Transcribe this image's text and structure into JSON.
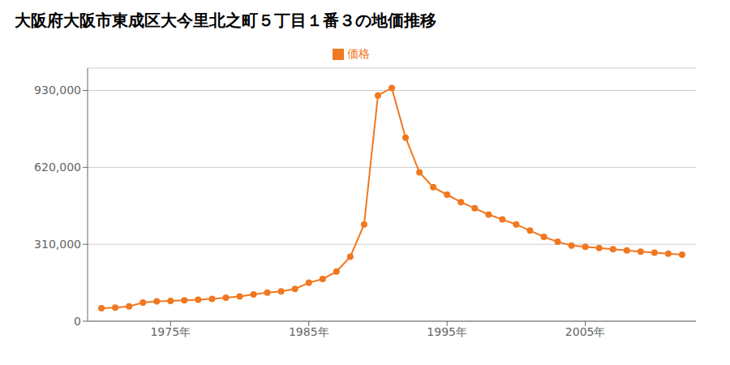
{
  "chart_data": {
    "type": "line",
    "title": "大阪府大阪市東成区大今里北之町５丁目１番３の地価推移",
    "x": [
      1970,
      1971,
      1972,
      1973,
      1974,
      1975,
      1976,
      1977,
      1978,
      1979,
      1980,
      1981,
      1982,
      1983,
      1984,
      1985,
      1986,
      1987,
      1988,
      1989,
      1990,
      1991,
      1992,
      1993,
      1994,
      1995,
      1996,
      1997,
      1998,
      1999,
      2000,
      2001,
      2002,
      2003,
      2004,
      2005,
      2006,
      2007,
      2008,
      2009,
      2010,
      2011,
      2012
    ],
    "series": [
      {
        "name": "価格",
        "color": "#f07820",
        "marker": "circle",
        "values": [
          52000,
          55000,
          60000,
          75000,
          80000,
          82000,
          84000,
          87000,
          90000,
          95000,
          100000,
          108000,
          115000,
          120000,
          130000,
          155000,
          170000,
          200000,
          260000,
          390000,
          910000,
          940000,
          740000,
          600000,
          540000,
          510000,
          480000,
          455000,
          430000,
          410000,
          390000,
          365000,
          340000,
          320000,
          305000,
          300000,
          295000,
          290000,
          285000,
          280000,
          276000,
          272000,
          268000
        ]
      }
    ],
    "xlim": [
      1969,
      2013
    ],
    "xticks": [
      {
        "value": 1975,
        "label": "1975年"
      },
      {
        "value": 1985,
        "label": "1985年"
      },
      {
        "value": 1995,
        "label": "1995年"
      },
      {
        "value": 2005,
        "label": "2005年"
      }
    ],
    "ylim": [
      0,
      1020000
    ],
    "yticks": [
      0,
      {
        "value": 310000,
        "label": "310,000"
      },
      {
        "value": 620000,
        "label": "620,000"
      },
      {
        "value": 930000,
        "label": "930,000"
      }
    ],
    "grid": "y",
    "legend": "top"
  }
}
